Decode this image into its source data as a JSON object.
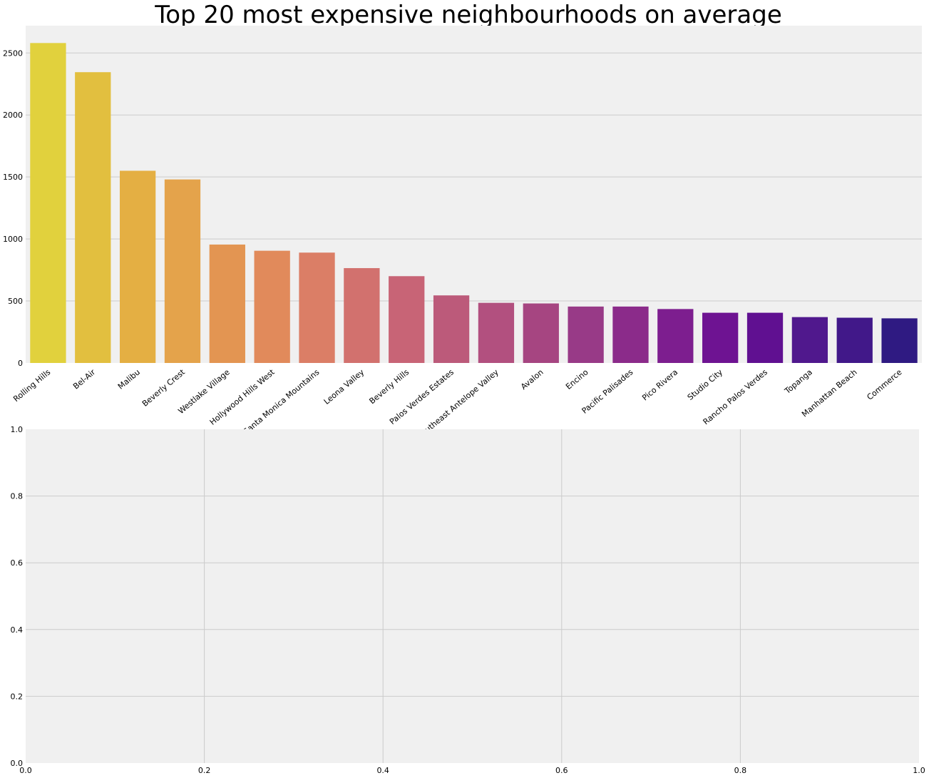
{
  "chart_data": [
    {
      "type": "bar",
      "title": "Top 20 most expensive neighbourhoods on average",
      "xlabel": "",
      "ylabel": "",
      "categories": [
        "Rolling Hills",
        "Bel-Air",
        "Malibu",
        "Beverly Crest",
        "Westlake Village",
        "Hollywood Hills West",
        "Unincorporated Santa Monica Mountains",
        "Leona Valley",
        "Beverly Hills",
        "Palos Verdes Estates",
        "Southeast Antelope Valley",
        "Avalon",
        "Encino",
        "Pacific Palisades",
        "Pico Rivera",
        "Studio City",
        "Rancho Palos Verdes",
        "Topanga",
        "Manhattan Beach",
        "Commerce"
      ],
      "values": [
        2580,
        2345,
        1550,
        1480,
        955,
        905,
        890,
        765,
        700,
        545,
        485,
        480,
        455,
        455,
        435,
        405,
        405,
        370,
        365,
        360
      ],
      "ylim": [
        0,
        2720
      ],
      "yticks": [
        0,
        500,
        1000,
        1500,
        2000,
        2500
      ],
      "grid": "horizontal",
      "palette": "plasma",
      "colors": [
        "#e1d13d",
        "#e2bf3f",
        "#e4af43",
        "#e4a34b",
        "#e39552",
        "#e18a5b",
        "#db7e66",
        "#d2716e",
        "#c86476",
        "#bc5a7a",
        "#b2507f",
        "#a64581",
        "#983a87",
        "#8b2b8a",
        "#7d1e8f",
        "#6e1392",
        "#601091",
        "#50188d",
        "#411889",
        "#2f1a82"
      ]
    },
    {
      "type": "scatter",
      "title": "",
      "xlabel": "",
      "ylabel": "",
      "xlim": [
        0.0,
        1.0
      ],
      "ylim": [
        0.0,
        1.0
      ],
      "xticks": [
        "0.0",
        "0.2",
        "0.4",
        "0.6",
        "0.8",
        "1.0"
      ],
      "yticks": [
        "0.0",
        "0.2",
        "0.4",
        "0.6",
        "0.8",
        "1.0"
      ],
      "grid": "both",
      "series": []
    }
  ]
}
